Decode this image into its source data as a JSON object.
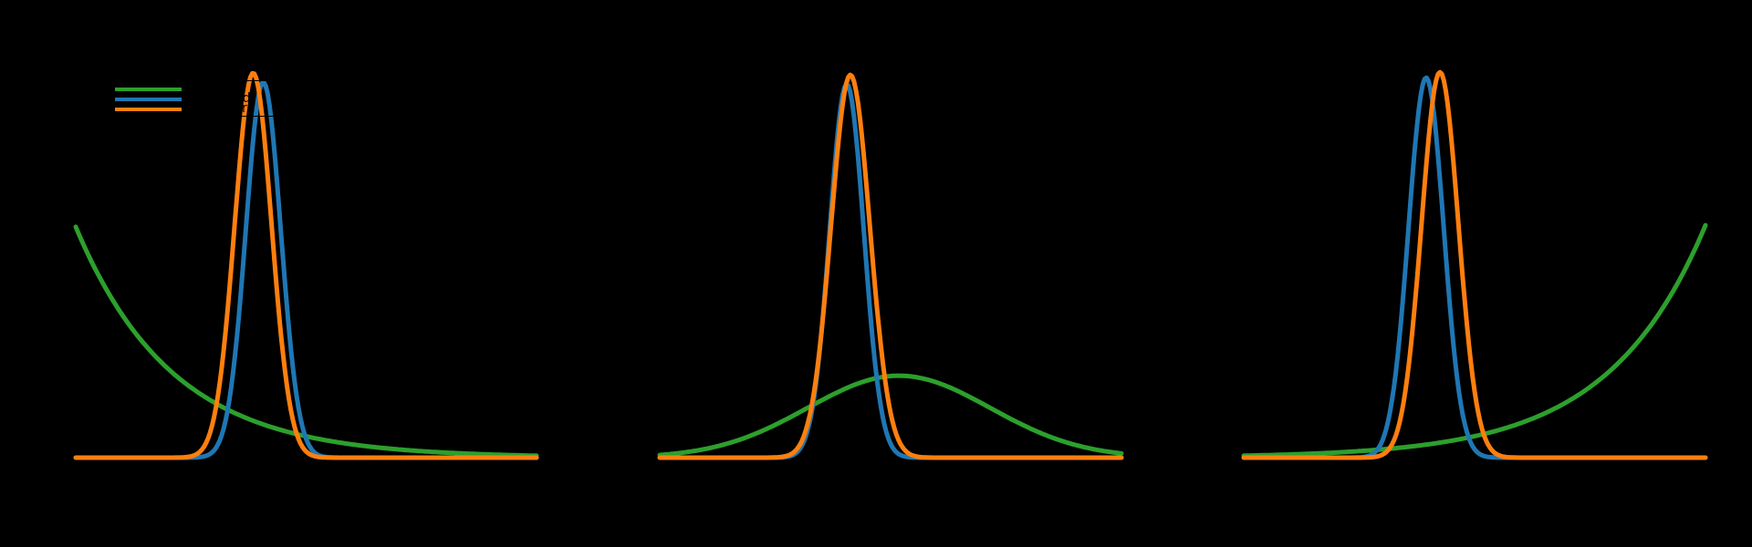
{
  "figure": {
    "background": "#000000",
    "text_color": "#000000",
    "panels": 3
  },
  "chart_data": [
    {
      "type": "line",
      "panel": "left",
      "title": "",
      "xlabel": "",
      "ylabel": "",
      "x_axis": {
        "visible_tick_labels": false,
        "range_normalized": [
          0,
          1
        ]
      },
      "y_axis": {
        "visible_tick_labels": false,
        "range_normalized": [
          0,
          1.05
        ]
      },
      "grid": false,
      "legend": {
        "position": "upper left",
        "frame_color": "#000000",
        "entries": [
          {
            "label": "prior",
            "color": "#2ca02c"
          },
          {
            "label": "likelihood",
            "color": "#1f77b4"
          },
          {
            "label": "posterior",
            "color": "#ff7f0e"
          }
        ]
      },
      "series": [
        {
          "name": "prior",
          "color": "#2ca02c",
          "curve": "exp_decay",
          "amp": 0.6,
          "tau": 0.21
        },
        {
          "name": "likelihood",
          "color": "#1f77b4",
          "curve": "gaussian",
          "amp": 0.976,
          "center": 0.407,
          "sigma": 0.038
        },
        {
          "name": "posterior",
          "color": "#ff7f0e",
          "curve": "gaussian",
          "amp": 1.0,
          "center": 0.385,
          "sigma": 0.04
        }
      ]
    },
    {
      "type": "line",
      "panel": "center",
      "title": "",
      "xlabel": "",
      "ylabel": "",
      "x_axis": {
        "visible_tick_labels": false,
        "range_normalized": [
          0,
          1
        ]
      },
      "y_axis": {
        "visible_tick_labels": false,
        "range_normalized": [
          0,
          1.05
        ]
      },
      "grid": false,
      "series": [
        {
          "name": "prior",
          "color": "#2ca02c",
          "curve": "gaussian",
          "amp": 0.213,
          "center": 0.518,
          "sigma": 0.198
        },
        {
          "name": "likelihood",
          "color": "#1f77b4",
          "curve": "gaussian",
          "amp": 0.971,
          "center": 0.405,
          "sigma": 0.037
        },
        {
          "name": "posterior",
          "color": "#ff7f0e",
          "curve": "gaussian",
          "amp": 0.995,
          "center": 0.413,
          "sigma": 0.042
        }
      ]
    },
    {
      "type": "line",
      "panel": "right",
      "title": "",
      "xlabel": "",
      "ylabel": "",
      "x_axis": {
        "visible_tick_labels": false,
        "range_normalized": [
          0,
          1
        ]
      },
      "y_axis": {
        "visible_tick_labels": false,
        "range_normalized": [
          0,
          1.05
        ]
      },
      "grid": false,
      "series": [
        {
          "name": "prior",
          "color": "#2ca02c",
          "curve": "exp_growth",
          "amp": 0.604,
          "tau": 0.21
        },
        {
          "name": "likelihood",
          "color": "#1f77b4",
          "curve": "gaussian",
          "amp": 0.988,
          "center": 0.395,
          "sigma": 0.038
        },
        {
          "name": "posterior",
          "color": "#ff7f0e",
          "curve": "gaussian",
          "amp": 1.002,
          "center": 0.425,
          "sigma": 0.04
        }
      ]
    }
  ]
}
